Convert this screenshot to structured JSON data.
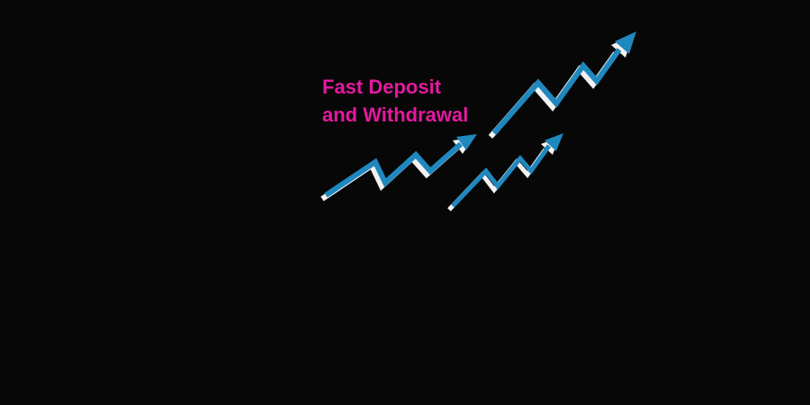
{
  "headline": {
    "line1": "Fast Deposit",
    "line2": "and Withdrawal"
  },
  "colors": {
    "background": "#070707",
    "headline_text": "#e5199f",
    "arrow_primary": "#1f88bf",
    "arrow_shadow": "#f2f2f2"
  },
  "icons": [
    "trend-up-arrow-icon",
    "trend-up-arrow-icon",
    "trend-up-arrow-icon"
  ]
}
